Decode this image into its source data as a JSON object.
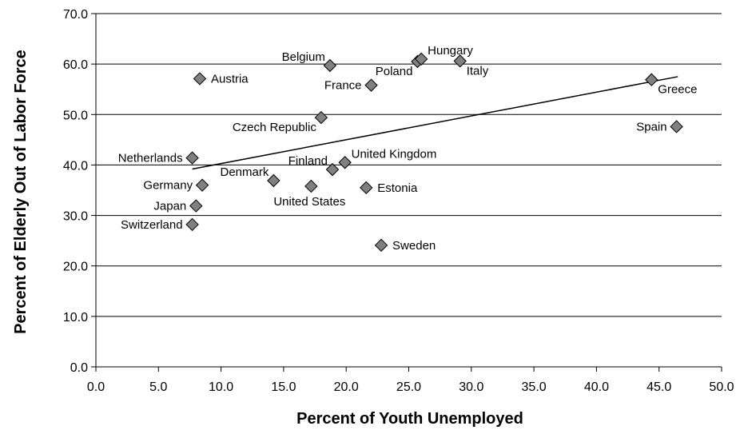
{
  "chart_data": {
    "type": "scatter",
    "title": "",
    "xlabel": "Percent of Youth Unemployed",
    "ylabel": "Percent of Elderly Out of Labor Force",
    "xlim": [
      0,
      50
    ],
    "ylim": [
      0,
      70
    ],
    "x_ticks": [
      "0.0",
      "5.0",
      "10.0",
      "15.0",
      "20.0",
      "25.0",
      "30.0",
      "35.0",
      "40.0",
      "45.0",
      "50.0"
    ],
    "y_ticks": [
      "0.0",
      "10.0",
      "20.0",
      "30.0",
      "40.0",
      "50.0",
      "60.0",
      "70.0"
    ],
    "grid": "horizontal",
    "marker": "diamond",
    "marker_color": "#808080",
    "points": [
      {
        "label": "Netherlands",
        "x": 7.7,
        "y": 41.4,
        "anchor": "left"
      },
      {
        "label": "Switzerland",
        "x": 7.7,
        "y": 28.2,
        "anchor": "left"
      },
      {
        "label": "Japan",
        "x": 8.0,
        "y": 31.9,
        "anchor": "left"
      },
      {
        "label": "Austria",
        "x": 8.3,
        "y": 57.1,
        "anchor": "right"
      },
      {
        "label": "Germany",
        "x": 8.5,
        "y": 36.0,
        "anchor": "left"
      },
      {
        "label": "Denmark",
        "x": 14.2,
        "y": 36.9,
        "anchor": "left-up"
      },
      {
        "label": "United States",
        "x": 17.2,
        "y": 35.8,
        "anchor": "below"
      },
      {
        "label": "Czech Republic",
        "x": 18.0,
        "y": 49.4,
        "anchor": "left-down"
      },
      {
        "label": "Belgium",
        "x": 18.7,
        "y": 59.7,
        "anchor": "left-up"
      },
      {
        "label": "Finland",
        "x": 18.9,
        "y": 39.1,
        "anchor": "left-up"
      },
      {
        "label": "United Kingdom",
        "x": 19.9,
        "y": 40.5,
        "anchor": "right-up"
      },
      {
        "label": "Estonia",
        "x": 21.6,
        "y": 35.5,
        "anchor": "right"
      },
      {
        "label": "France",
        "x": 22.0,
        "y": 55.8,
        "anchor": "left"
      },
      {
        "label": "Sweden",
        "x": 22.8,
        "y": 24.1,
        "anchor": "right"
      },
      {
        "label": "Poland",
        "x": 25.7,
        "y": 60.5,
        "anchor": "left-down"
      },
      {
        "label": "Hungary",
        "x": 26.0,
        "y": 61.0,
        "anchor": "right-up"
      },
      {
        "label": "Italy",
        "x": 29.1,
        "y": 60.6,
        "anchor": "right-down"
      },
      {
        "label": "Greece",
        "x": 44.4,
        "y": 56.9,
        "anchor": "right-down"
      },
      {
        "label": "Spain",
        "x": 46.4,
        "y": 47.6,
        "anchor": "left"
      }
    ],
    "trendline": {
      "x": [
        7.7,
        46.5
      ],
      "y": [
        39.2,
        57.5
      ]
    }
  }
}
